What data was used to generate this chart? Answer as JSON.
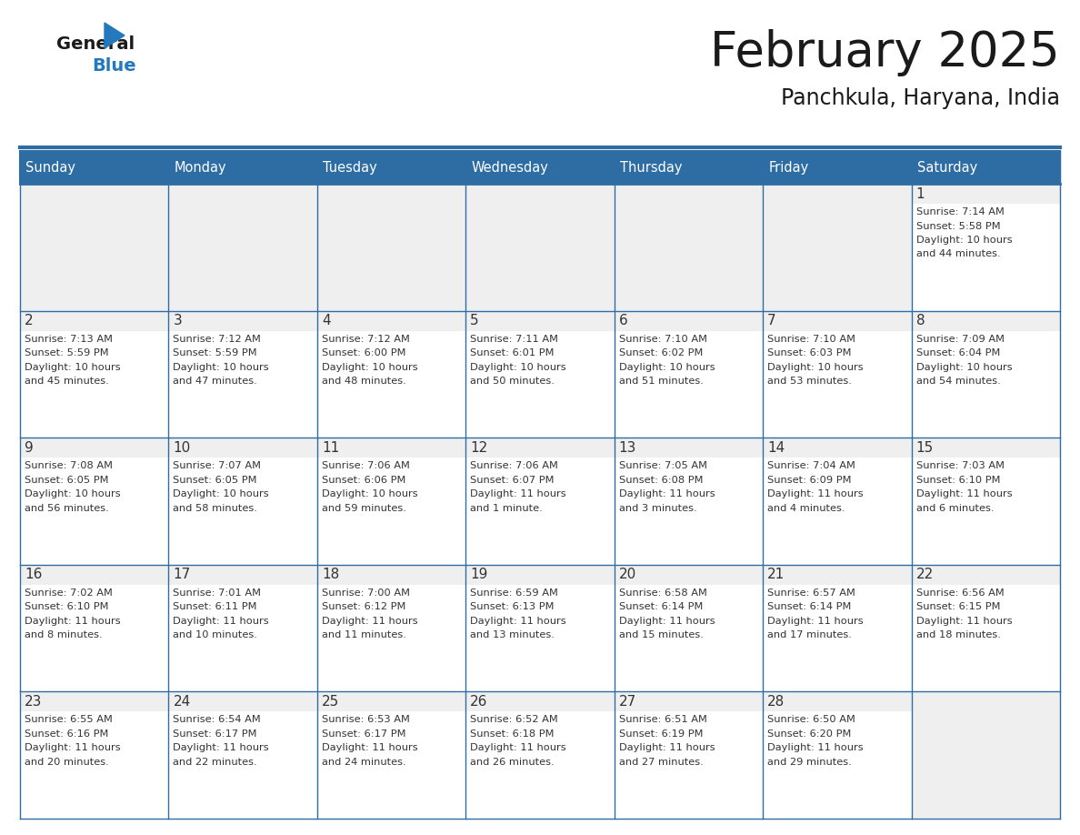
{
  "title": "February 2025",
  "subtitle": "Panchkula, Haryana, India",
  "header_bg": "#2E6DA4",
  "header_text_color": "#FFFFFF",
  "day_num_bg": "#EFEFEF",
  "cell_bg": "#FFFFFF",
  "border_color": "#2E6DA4",
  "text_color": "#333333",
  "days_of_week": [
    "Sunday",
    "Monday",
    "Tuesday",
    "Wednesday",
    "Thursday",
    "Friday",
    "Saturday"
  ],
  "weeks": [
    [
      {
        "day": "",
        "info": ""
      },
      {
        "day": "",
        "info": ""
      },
      {
        "day": "",
        "info": ""
      },
      {
        "day": "",
        "info": ""
      },
      {
        "day": "",
        "info": ""
      },
      {
        "day": "",
        "info": ""
      },
      {
        "day": "1",
        "info": "Sunrise: 7:14 AM\nSunset: 5:58 PM\nDaylight: 10 hours\nand 44 minutes."
      }
    ],
    [
      {
        "day": "2",
        "info": "Sunrise: 7:13 AM\nSunset: 5:59 PM\nDaylight: 10 hours\nand 45 minutes."
      },
      {
        "day": "3",
        "info": "Sunrise: 7:12 AM\nSunset: 5:59 PM\nDaylight: 10 hours\nand 47 minutes."
      },
      {
        "day": "4",
        "info": "Sunrise: 7:12 AM\nSunset: 6:00 PM\nDaylight: 10 hours\nand 48 minutes."
      },
      {
        "day": "5",
        "info": "Sunrise: 7:11 AM\nSunset: 6:01 PM\nDaylight: 10 hours\nand 50 minutes."
      },
      {
        "day": "6",
        "info": "Sunrise: 7:10 AM\nSunset: 6:02 PM\nDaylight: 10 hours\nand 51 minutes."
      },
      {
        "day": "7",
        "info": "Sunrise: 7:10 AM\nSunset: 6:03 PM\nDaylight: 10 hours\nand 53 minutes."
      },
      {
        "day": "8",
        "info": "Sunrise: 7:09 AM\nSunset: 6:04 PM\nDaylight: 10 hours\nand 54 minutes."
      }
    ],
    [
      {
        "day": "9",
        "info": "Sunrise: 7:08 AM\nSunset: 6:05 PM\nDaylight: 10 hours\nand 56 minutes."
      },
      {
        "day": "10",
        "info": "Sunrise: 7:07 AM\nSunset: 6:05 PM\nDaylight: 10 hours\nand 58 minutes."
      },
      {
        "day": "11",
        "info": "Sunrise: 7:06 AM\nSunset: 6:06 PM\nDaylight: 10 hours\nand 59 minutes."
      },
      {
        "day": "12",
        "info": "Sunrise: 7:06 AM\nSunset: 6:07 PM\nDaylight: 11 hours\nand 1 minute."
      },
      {
        "day": "13",
        "info": "Sunrise: 7:05 AM\nSunset: 6:08 PM\nDaylight: 11 hours\nand 3 minutes."
      },
      {
        "day": "14",
        "info": "Sunrise: 7:04 AM\nSunset: 6:09 PM\nDaylight: 11 hours\nand 4 minutes."
      },
      {
        "day": "15",
        "info": "Sunrise: 7:03 AM\nSunset: 6:10 PM\nDaylight: 11 hours\nand 6 minutes."
      }
    ],
    [
      {
        "day": "16",
        "info": "Sunrise: 7:02 AM\nSunset: 6:10 PM\nDaylight: 11 hours\nand 8 minutes."
      },
      {
        "day": "17",
        "info": "Sunrise: 7:01 AM\nSunset: 6:11 PM\nDaylight: 11 hours\nand 10 minutes."
      },
      {
        "day": "18",
        "info": "Sunrise: 7:00 AM\nSunset: 6:12 PM\nDaylight: 11 hours\nand 11 minutes."
      },
      {
        "day": "19",
        "info": "Sunrise: 6:59 AM\nSunset: 6:13 PM\nDaylight: 11 hours\nand 13 minutes."
      },
      {
        "day": "20",
        "info": "Sunrise: 6:58 AM\nSunset: 6:14 PM\nDaylight: 11 hours\nand 15 minutes."
      },
      {
        "day": "21",
        "info": "Sunrise: 6:57 AM\nSunset: 6:14 PM\nDaylight: 11 hours\nand 17 minutes."
      },
      {
        "day": "22",
        "info": "Sunrise: 6:56 AM\nSunset: 6:15 PM\nDaylight: 11 hours\nand 18 minutes."
      }
    ],
    [
      {
        "day": "23",
        "info": "Sunrise: 6:55 AM\nSunset: 6:16 PM\nDaylight: 11 hours\nand 20 minutes."
      },
      {
        "day": "24",
        "info": "Sunrise: 6:54 AM\nSunset: 6:17 PM\nDaylight: 11 hours\nand 22 minutes."
      },
      {
        "day": "25",
        "info": "Sunrise: 6:53 AM\nSunset: 6:17 PM\nDaylight: 11 hours\nand 24 minutes."
      },
      {
        "day": "26",
        "info": "Sunrise: 6:52 AM\nSunset: 6:18 PM\nDaylight: 11 hours\nand 26 minutes."
      },
      {
        "day": "27",
        "info": "Sunrise: 6:51 AM\nSunset: 6:19 PM\nDaylight: 11 hours\nand 27 minutes."
      },
      {
        "day": "28",
        "info": "Sunrise: 6:50 AM\nSunset: 6:20 PM\nDaylight: 11 hours\nand 29 minutes."
      },
      {
        "day": "",
        "info": ""
      }
    ]
  ],
  "logo_general_color": "#1a1a1a",
  "logo_blue_color": "#2479BD",
  "logo_triangle_color": "#2479BD",
  "fig_width": 11.88,
  "fig_height": 9.18,
  "dpi": 100
}
